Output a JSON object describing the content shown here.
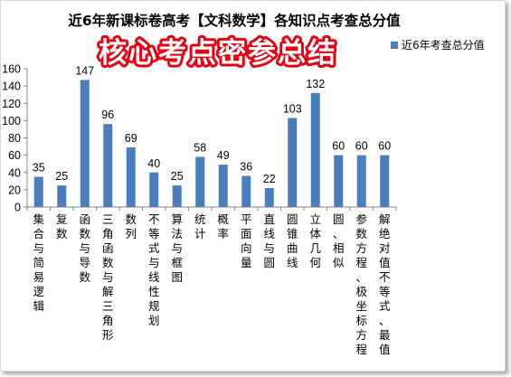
{
  "chart_data": {
    "type": "bar",
    "title": "近6年新课标卷高考【文科数学】各知识点考查总分值",
    "banner": "核心考点密参总结",
    "legend_position": "top-right",
    "ylim": [
      0,
      160
    ],
    "yticks": [
      0,
      20,
      40,
      60,
      80,
      100,
      120,
      140,
      160
    ],
    "grid": false,
    "bar_color": "#4a7ebb",
    "series": [
      {
        "name": "近6年考查总分值",
        "values": [
          35,
          25,
          147,
          96,
          69,
          40,
          25,
          58,
          49,
          36,
          22,
          103,
          132,
          60,
          60,
          60
        ]
      }
    ],
    "categories": [
      "集合与简易逻辑",
      "复数",
      "函数与导数",
      "三角函数与解三角形",
      "数列",
      "不等式与线性规划",
      "算法与框图",
      "统计",
      "概率",
      "平面向量",
      "直线与圆",
      "圆锥曲线",
      "立体几何",
      "圆、相似",
      "参数方程、极坐标方程",
      "解绝对值不等式、最值"
    ]
  }
}
